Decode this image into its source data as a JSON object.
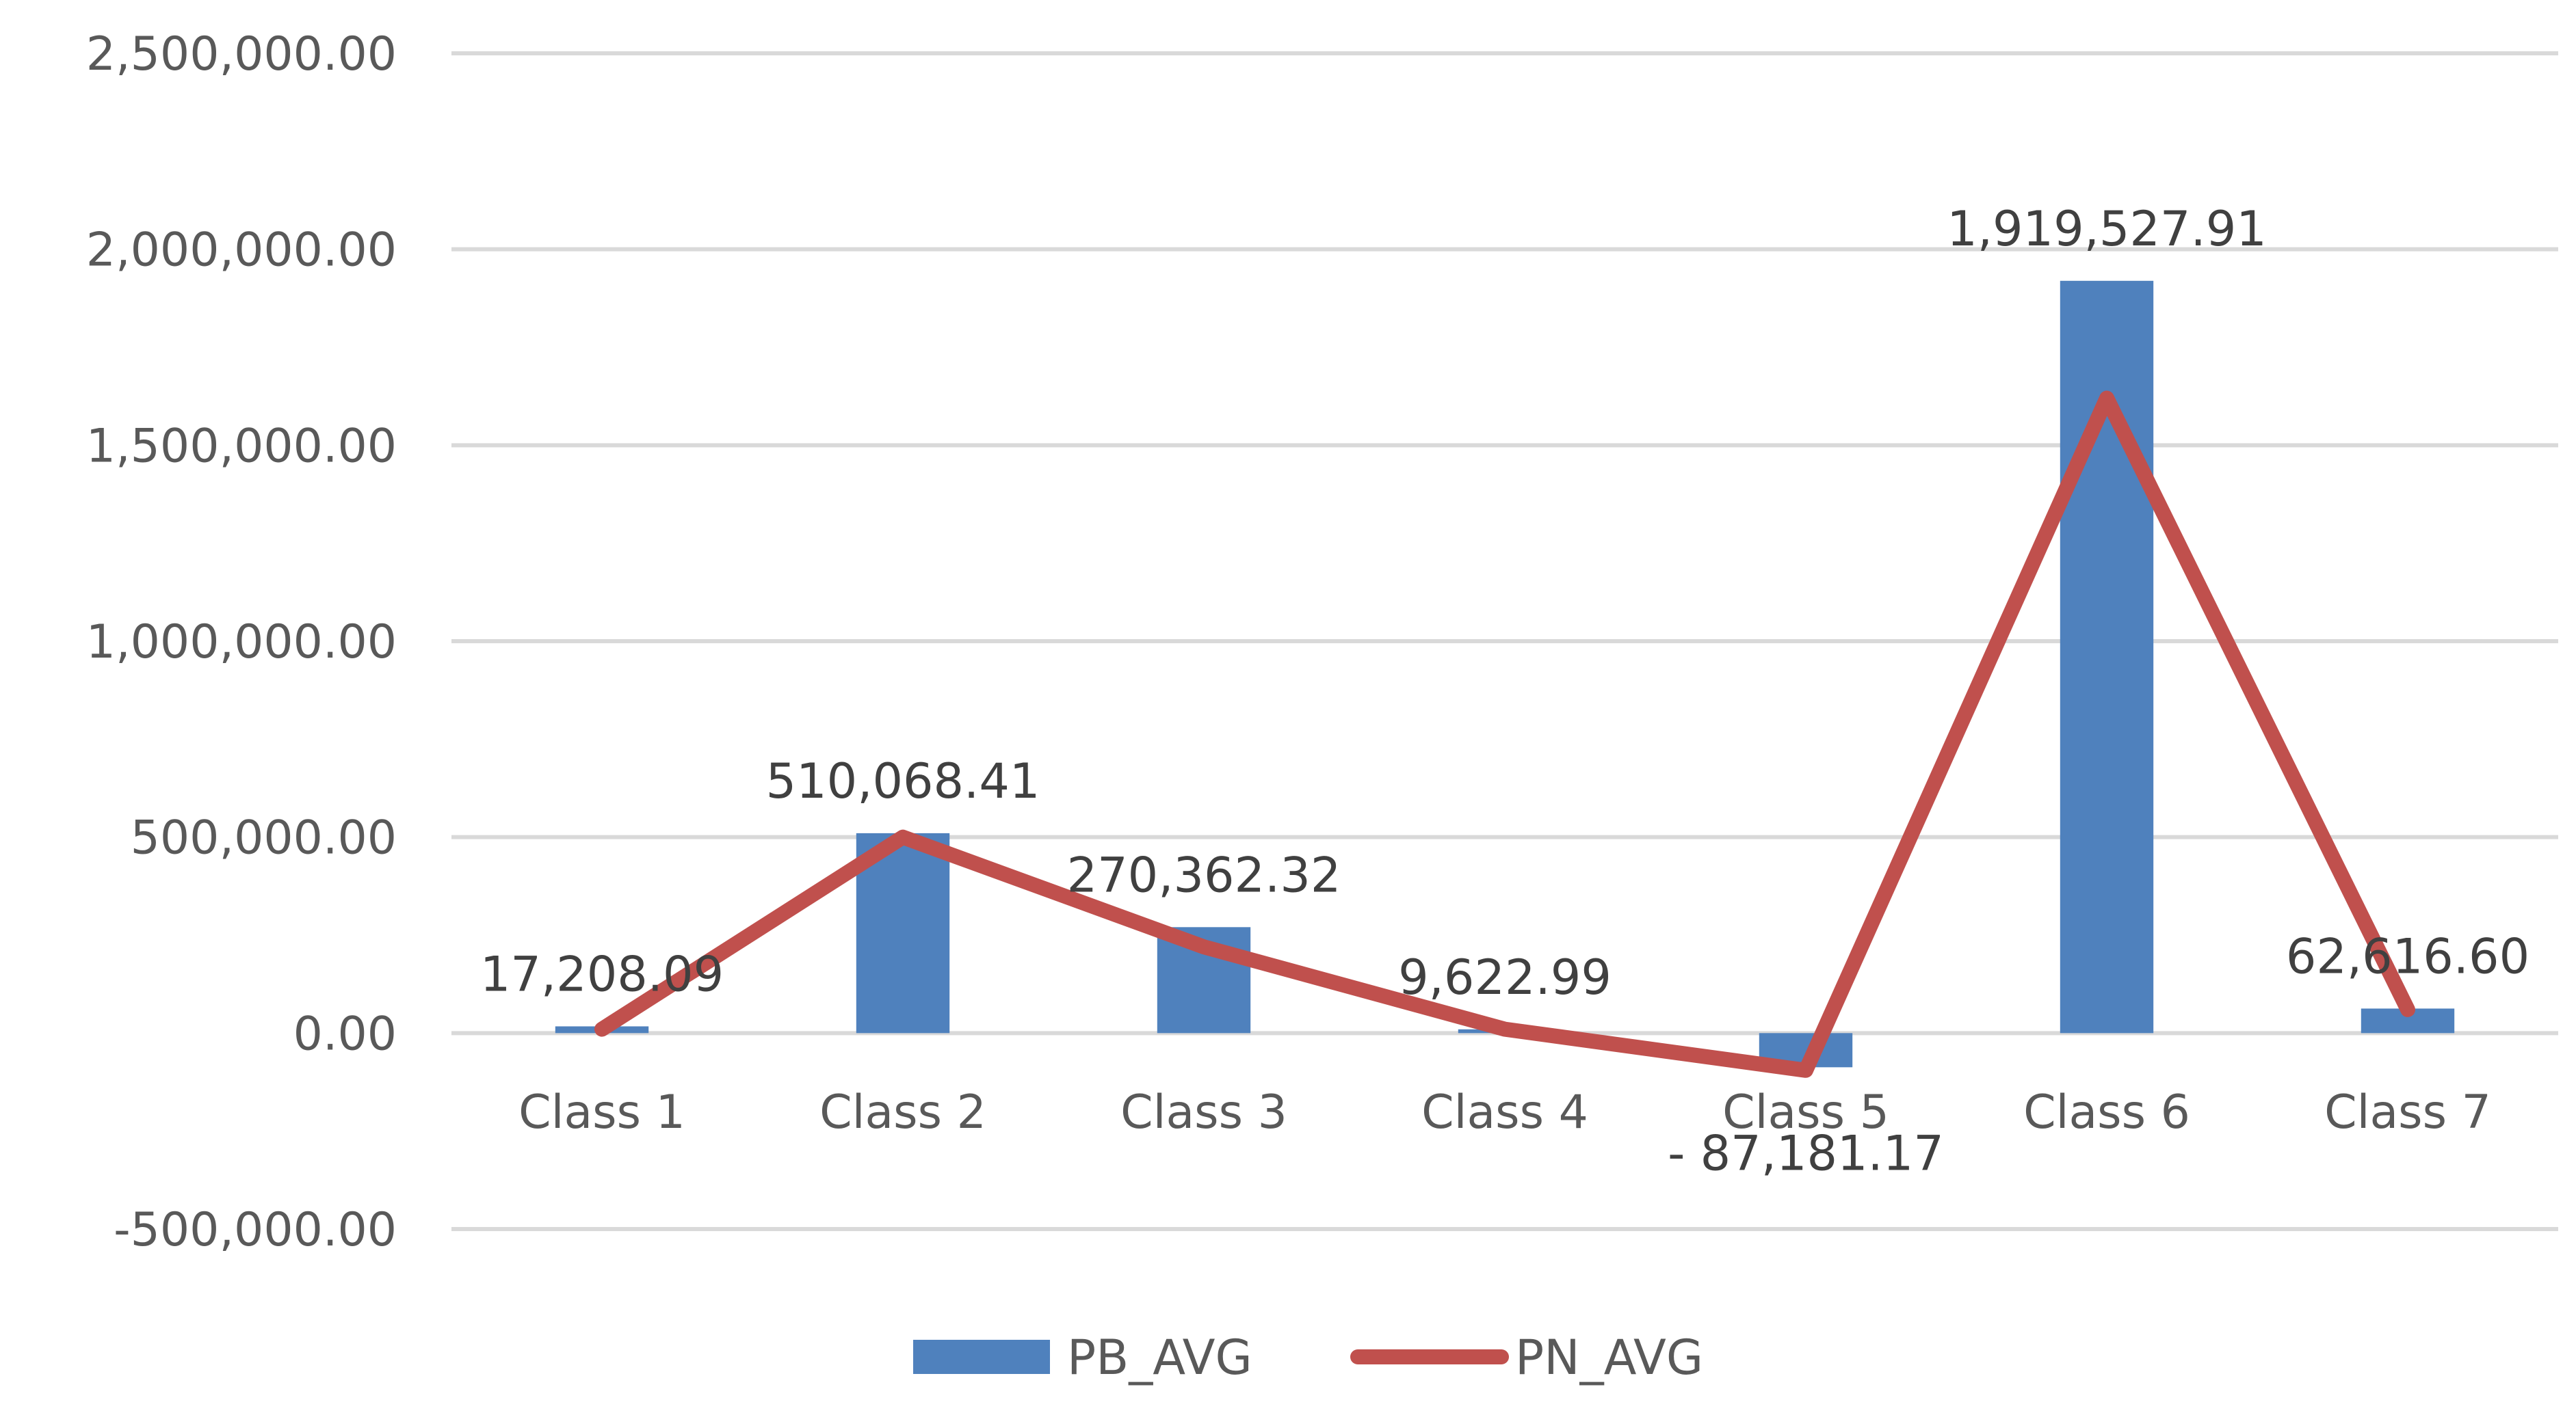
{
  "chart_data": {
    "type": "bar",
    "title": "",
    "xlabel": "",
    "ylabel": "",
    "categories": [
      "Class 1",
      "Class 2",
      "Class 3",
      "Class 4",
      "Class 5",
      "Class 6",
      "Class 7"
    ],
    "series": [
      {
        "name": "PB_AVG",
        "type": "bar",
        "color": "#4F81BD",
        "values": [
          17208.09,
          510068.41,
          270362.32,
          9622.99,
          -87181.17,
          1919527.91,
          62616.6
        ],
        "data_labels": [
          "17,208.09",
          "510,068.41",
          "270,362.32",
          "9,622.99",
          "- 87,181.17",
          "1,919,527.91",
          "62,616.60"
        ]
      },
      {
        "name": "PN_AVG",
        "type": "line",
        "color": "#C0504D",
        "values": [
          10000,
          500000,
          220000,
          10000,
          -95000,
          1620000,
          60000
        ]
      }
    ],
    "ylim": [
      -500000,
      2500000
    ],
    "yticks": [
      -500000,
      0,
      500000,
      1000000,
      1500000,
      2000000,
      2500000
    ],
    "ytick_labels": [
      "-500,000.00",
      "0.00",
      "500,000.00",
      "1,000,000.00",
      "1,500,000.00",
      "2,000,000.00",
      "2,500,000.00"
    ],
    "grid": true,
    "legend_position": "bottom"
  }
}
